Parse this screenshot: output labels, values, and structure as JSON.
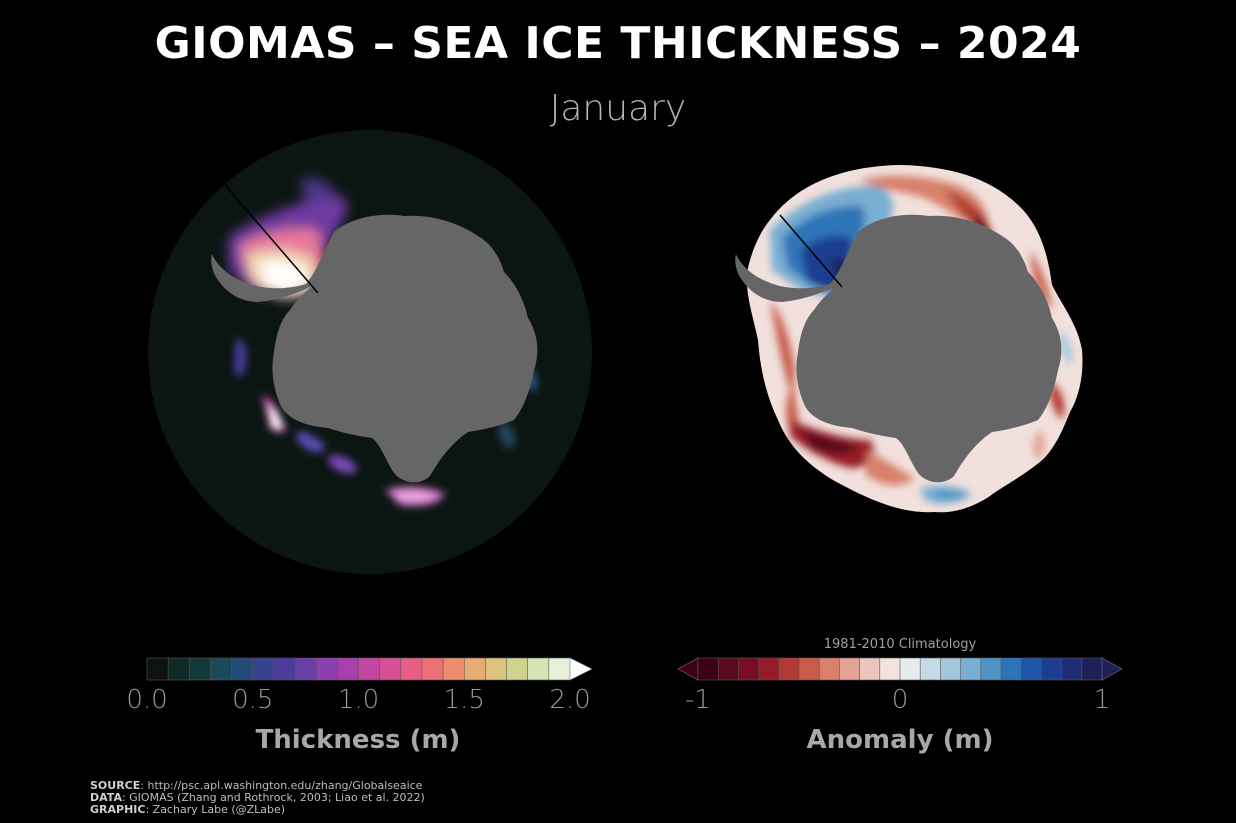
{
  "header": {
    "title": "GIOMAS – SEA ICE THICKNESS – 2024",
    "month": "January"
  },
  "thickness_colorbar": {
    "label": "Thickness (m)",
    "ticks": [
      "0.0",
      "0.5",
      "1.0",
      "1.5",
      "2.0"
    ],
    "colors": [
      "#0c1310",
      "#0f2a26",
      "#123a3a",
      "#1a4a5a",
      "#244a7a",
      "#36418f",
      "#4b3c9a",
      "#6a3fa8",
      "#8b3fb0",
      "#a83fae",
      "#c546a2",
      "#d84f94",
      "#e65e83",
      "#ec7174",
      "#ee8d6e",
      "#e9ab74",
      "#dcc37e",
      "#cfd38e",
      "#d6e4b4",
      "#e6f1d8",
      "#ffffff"
    ]
  },
  "anomaly_colorbar": {
    "label": "Anomaly (m)",
    "reference": "1981-2010 Climatology",
    "ticks": [
      "-1",
      "0",
      "1"
    ],
    "colors": [
      "#3d0014",
      "#5a0a1e",
      "#7a0d24",
      "#981a28",
      "#b23a32",
      "#c85c48",
      "#d8806a",
      "#e3a494",
      "#ecc6bd",
      "#f3e2de",
      "#e4ecf0",
      "#c6dbe6",
      "#a2c6dc",
      "#78aed1",
      "#4f93c6",
      "#2e74b8",
      "#1e55a6",
      "#1d3e90",
      "#1e2d74",
      "#1d2158"
    ]
  },
  "credits": [
    {
      "label": "SOURCE",
      "text": ": http://psc.apl.washington.edu/zhang/Globalseaice"
    },
    {
      "label": "DATA",
      "text": ": GIOMAS (Zhang and Rothrock, 2003; Liao et al. 2022)"
    },
    {
      "label": "GRAPHIC",
      "text": ": Zachary Labe (@ZLabe)"
    }
  ]
}
